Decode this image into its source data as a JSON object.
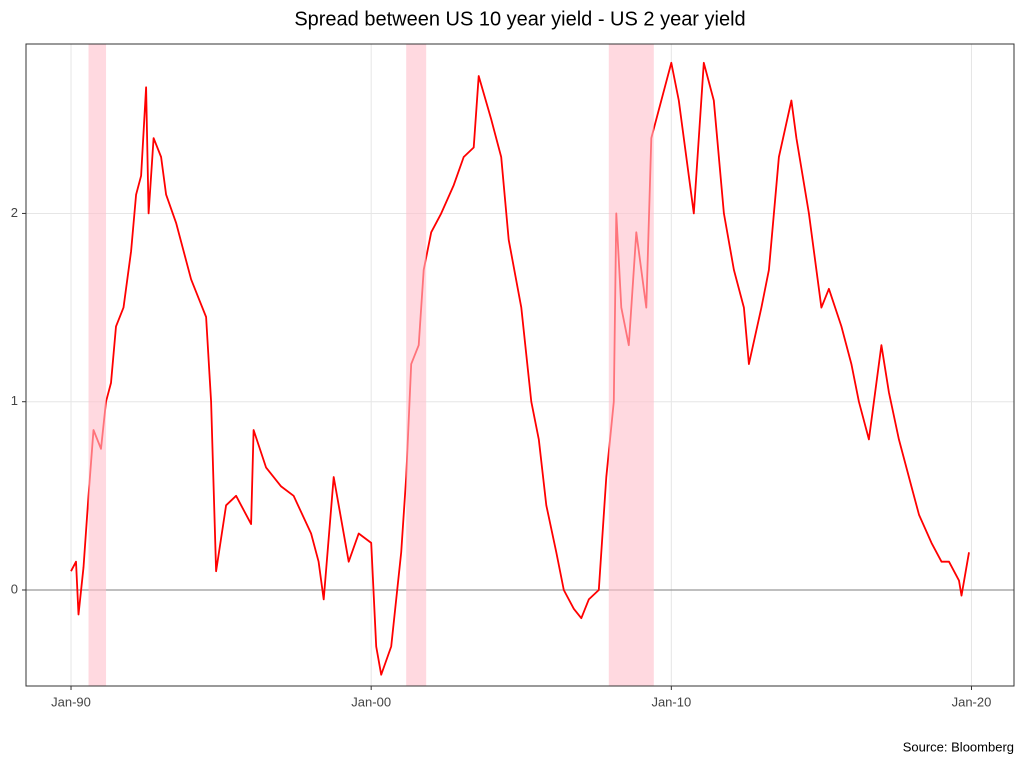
{
  "chart_data": {
    "type": "line",
    "title": "Spread between US 10 year yield - US 2 year yield",
    "caption": "Source: Bloomberg",
    "x": [
      "1990-01",
      "1990-03",
      "1990-04",
      "1990-06",
      "1990-08",
      "1990-10",
      "1991-01",
      "1991-03",
      "1991-05",
      "1991-07",
      "1991-10",
      "1992-01",
      "1992-03",
      "1992-05",
      "1992-07",
      "1992-08",
      "1992-10",
      "1993-01",
      "1993-03",
      "1993-07",
      "1994-01",
      "1994-04",
      "1994-07",
      "1994-09",
      "1994-11",
      "1995-03",
      "1995-07",
      "1996-01",
      "1996-02",
      "1996-07",
      "1997-01",
      "1997-06",
      "1998-01",
      "1998-04",
      "1998-06",
      "1998-10",
      "1999-04",
      "1999-08",
      "2000-01",
      "2000-03",
      "2000-05",
      "2000-09",
      "2001-01",
      "2001-03",
      "2001-05",
      "2001-08",
      "2001-10",
      "2002-01",
      "2002-05",
      "2002-10",
      "2003-02",
      "2003-06",
      "2003-08",
      "2004-01",
      "2004-05",
      "2004-08",
      "2005-01",
      "2005-05",
      "2005-08",
      "2005-11",
      "2006-03",
      "2006-06",
      "2006-10",
      "2007-01",
      "2007-04",
      "2007-08",
      "2007-11",
      "2008-02",
      "2008-03",
      "2008-05",
      "2008-08",
      "2008-11",
      "2009-03",
      "2009-05",
      "2009-09",
      "2010-01",
      "2010-04",
      "2010-08",
      "2010-10",
      "2011-02",
      "2011-06",
      "2011-10",
      "2012-02",
      "2012-06",
      "2012-08",
      "2013-01",
      "2013-04",
      "2013-08",
      "2014-01",
      "2014-03",
      "2014-08",
      "2015-01",
      "2015-04",
      "2015-09",
      "2016-01",
      "2016-04",
      "2016-08",
      "2017-01",
      "2017-04",
      "2017-08",
      "2018-01",
      "2018-04",
      "2018-09",
      "2019-01",
      "2019-04",
      "2019-08",
      "2019-09",
      "2019-12"
    ],
    "series": [
      {
        "name": "Spread",
        "color": "#ff0000",
        "values": [
          0.1,
          0.15,
          -0.13,
          0.12,
          0.5,
          0.85,
          0.75,
          1.0,
          1.1,
          1.4,
          1.5,
          1.8,
          2.1,
          2.2,
          2.67,
          2.0,
          2.4,
          2.3,
          2.1,
          1.95,
          1.65,
          1.55,
          1.45,
          1.0,
          0.1,
          0.45,
          0.5,
          0.35,
          0.85,
          0.65,
          0.55,
          0.5,
          0.3,
          0.15,
          -0.05,
          0.6,
          0.15,
          0.3,
          0.25,
          -0.3,
          -0.45,
          -0.3,
          0.2,
          0.6,
          1.2,
          1.3,
          1.7,
          1.9,
          2.0,
          2.15,
          2.3,
          2.35,
          2.73,
          2.5,
          2.3,
          1.86,
          1.5,
          1.0,
          0.8,
          0.45,
          0.2,
          0.0,
          -0.1,
          -0.15,
          -0.05,
          0.0,
          0.6,
          1.0,
          2.0,
          1.5,
          1.3,
          1.9,
          1.5,
          2.4,
          2.6,
          2.8,
          2.6,
          2.2,
          2.0,
          2.8,
          2.6,
          2.0,
          1.7,
          1.5,
          1.2,
          1.5,
          1.7,
          2.3,
          2.6,
          2.4,
          2.0,
          1.5,
          1.6,
          1.4,
          1.2,
          1.0,
          0.8,
          1.3,
          1.05,
          0.8,
          0.55,
          0.4,
          0.25,
          0.15,
          0.15,
          0.05,
          -0.03,
          0.2
        ]
      }
    ],
    "xlim": [
      "1988-07",
      "2021-06"
    ],
    "xticks": [
      {
        "value": "1990-01",
        "label": "Jan-90"
      },
      {
        "value": "2000-01",
        "label": "Jan-00"
      },
      {
        "value": "2010-01",
        "label": "Jan-10"
      },
      {
        "value": "2020-01",
        "label": "Jan-20"
      }
    ],
    "ylim": [
      -0.51,
      2.9
    ],
    "yticks": [
      0,
      1,
      2
    ],
    "grid": true,
    "hline": 0,
    "recessions": [
      {
        "start": "1990-08",
        "end": "1991-03"
      },
      {
        "start": "2001-03",
        "end": "2001-11"
      },
      {
        "start": "2007-12",
        "end": "2009-06"
      }
    ],
    "recession_color": "#ffc0cb"
  }
}
